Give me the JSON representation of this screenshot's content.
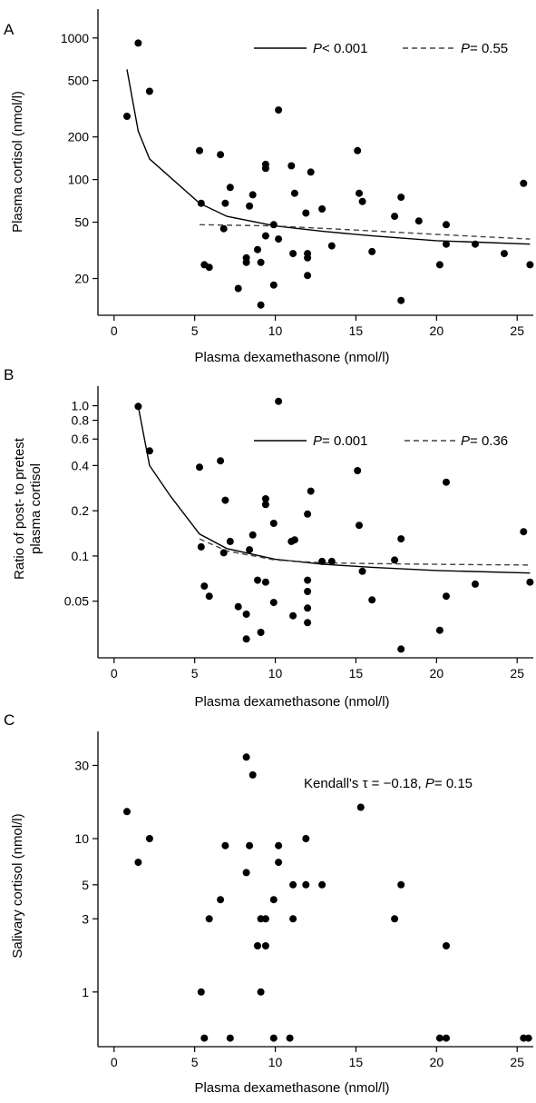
{
  "chart_data": [
    {
      "panel": "A",
      "type": "scatter",
      "xlabel": "Plasma dexamethasone (nmol/l)",
      "ylabel": "Plasma cortisol (nmol/l)",
      "x_scale": "linear",
      "y_scale": "log",
      "xlim": [
        -1,
        26
      ],
      "ylim": [
        11,
        1600
      ],
      "x_ticks": [
        0,
        5,
        10,
        15,
        20,
        25
      ],
      "y_ticks": [
        20,
        50,
        100,
        200,
        500,
        1000
      ],
      "x_tick_labels": [
        "0",
        "5",
        "10",
        "15",
        "20",
        "25"
      ],
      "y_tick_labels": [
        "20",
        "50",
        "100",
        "200",
        "500",
        "1000"
      ],
      "points": [
        [
          0.8,
          280
        ],
        [
          1.5,
          920
        ],
        [
          2.2,
          420
        ],
        [
          5.3,
          160
        ],
        [
          5.4,
          68
        ],
        [
          5.6,
          25
        ],
        [
          5.9,
          24
        ],
        [
          6.6,
          150
        ],
        [
          6.8,
          45
        ],
        [
          6.9,
          68
        ],
        [
          7.2,
          88
        ],
        [
          7.7,
          17
        ],
        [
          8.2,
          26
        ],
        [
          8.2,
          28
        ],
        [
          8.4,
          65
        ],
        [
          8.6,
          78
        ],
        [
          8.9,
          32
        ],
        [
          9.1,
          26
        ],
        [
          9.1,
          13
        ],
        [
          9.4,
          40
        ],
        [
          9.4,
          120
        ],
        [
          9.4,
          128
        ],
        [
          9.9,
          18
        ],
        [
          9.9,
          48
        ],
        [
          10.2,
          310
        ],
        [
          10.2,
          38
        ],
        [
          11.0,
          125
        ],
        [
          11.1,
          30
        ],
        [
          11.2,
          80
        ],
        [
          11.9,
          58
        ],
        [
          12.0,
          21
        ],
        [
          12.0,
          28
        ],
        [
          12.0,
          30
        ],
        [
          12.2,
          113
        ],
        [
          12.9,
          62
        ],
        [
          13.5,
          34
        ],
        [
          15.1,
          160
        ],
        [
          15.2,
          80
        ],
        [
          15.4,
          70
        ],
        [
          16.0,
          31
        ],
        [
          17.4,
          55
        ],
        [
          17.8,
          75
        ],
        [
          17.8,
          14
        ],
        [
          18.9,
          51
        ],
        [
          20.2,
          25
        ],
        [
          20.6,
          48
        ],
        [
          20.6,
          35
        ],
        [
          22.4,
          35
        ],
        [
          24.2,
          30
        ],
        [
          25.4,
          94
        ],
        [
          25.8,
          25
        ]
      ],
      "fits": [
        {
          "style": "solid",
          "points": [
            [
              0.8,
              600
            ],
            [
              1.5,
              220
            ],
            [
              2.2,
              140
            ],
            [
              5.3,
              68
            ],
            [
              7,
              55
            ],
            [
              10,
              47
            ],
            [
              13,
              43
            ],
            [
              16,
              40
            ],
            [
              20,
              37
            ],
            [
              25.8,
              35
            ]
          ]
        },
        {
          "style": "dashed",
          "points": [
            [
              5.3,
              48
            ],
            [
              10,
              47
            ],
            [
              15,
              44
            ],
            [
              20,
              41
            ],
            [
              25.8,
              38
            ]
          ]
        }
      ],
      "legend": {
        "position": "top-right",
        "solid_text": "< 0.001",
        "dashed_text": "= 0.55"
      }
    },
    {
      "panel": "B",
      "type": "scatter",
      "xlabel": "Plasma dexamethasone (nmol/l)",
      "ylabel_line1": "Ratio of post- to pretest",
      "ylabel_line2": "plasma cortisol",
      "x_scale": "linear",
      "y_scale": "log",
      "xlim": [
        -1,
        26
      ],
      "ylim": [
        0.021,
        1.35
      ],
      "x_ticks": [
        0,
        5,
        10,
        15,
        20,
        25
      ],
      "y_ticks": [
        0.05,
        0.1,
        0.2,
        0.4,
        0.6,
        0.8,
        1.0
      ],
      "x_tick_labels": [
        "0",
        "5",
        "10",
        "15",
        "20",
        "25"
      ],
      "y_tick_labels": [
        "0.05",
        "0.1",
        "0.2",
        "0.4",
        "0.6",
        "0.8",
        "1.0"
      ],
      "points": [
        [
          1.5,
          0.99
        ],
        [
          2.2,
          0.5
        ],
        [
          5.3,
          0.39
        ],
        [
          5.4,
          0.115
        ],
        [
          5.6,
          0.063
        ],
        [
          5.9,
          0.054
        ],
        [
          6.6,
          0.43
        ],
        [
          6.8,
          0.105
        ],
        [
          6.9,
          0.235
        ],
        [
          7.2,
          0.125
        ],
        [
          7.7,
          0.046
        ],
        [
          8.2,
          0.041
        ],
        [
          8.2,
          0.028
        ],
        [
          8.4,
          0.11
        ],
        [
          8.6,
          0.138
        ],
        [
          8.9,
          0.069
        ],
        [
          9.1,
          0.031
        ],
        [
          9.4,
          0.067
        ],
        [
          9.4,
          0.24
        ],
        [
          9.4,
          0.22
        ],
        [
          9.9,
          0.165
        ],
        [
          9.9,
          0.049
        ],
        [
          10.2,
          1.07
        ],
        [
          11.0,
          0.125
        ],
        [
          11.1,
          0.04
        ],
        [
          11.2,
          0.128
        ],
        [
          12.0,
          0.069
        ],
        [
          12.0,
          0.058
        ],
        [
          12.0,
          0.045
        ],
        [
          12.0,
          0.036
        ],
        [
          12.0,
          0.19
        ],
        [
          12.2,
          0.27
        ],
        [
          12.9,
          0.092
        ],
        [
          13.5,
          0.092
        ],
        [
          15.1,
          0.37
        ],
        [
          15.2,
          0.16
        ],
        [
          15.4,
          0.079
        ],
        [
          16.0,
          0.051
        ],
        [
          17.4,
          0.094
        ],
        [
          17.8,
          0.13
        ],
        [
          17.8,
          0.024
        ],
        [
          20.2,
          0.032
        ],
        [
          20.6,
          0.31
        ],
        [
          20.6,
          0.054
        ],
        [
          22.4,
          0.065
        ],
        [
          25.4,
          0.145
        ],
        [
          25.8,
          0.067
        ]
      ],
      "fits": [
        {
          "style": "solid",
          "points": [
            [
              1.5,
              0.99
            ],
            [
              2.2,
              0.4
            ],
            [
              3.5,
              0.25
            ],
            [
              5.3,
              0.14
            ],
            [
              7,
              0.112
            ],
            [
              10,
              0.095
            ],
            [
              13,
              0.088
            ],
            [
              16,
              0.084
            ],
            [
              20,
              0.08
            ],
            [
              25.8,
              0.077
            ]
          ]
        },
        {
          "style": "dashed",
          "points": [
            [
              5.3,
              0.13
            ],
            [
              7,
              0.108
            ],
            [
              10,
              0.094
            ],
            [
              13,
              0.09
            ],
            [
              16,
              0.089
            ],
            [
              20,
              0.088
            ],
            [
              25.8,
              0.087
            ]
          ]
        }
      ],
      "legend": {
        "position": "top-right",
        "solid_text": "= 0.001",
        "dashed_text": "= 0.36"
      }
    },
    {
      "panel": "C",
      "type": "scatter",
      "xlabel": "Plasma dexamethasone (nmol/l)",
      "ylabel": "Salivary cortisol (nmol/l)",
      "x_scale": "linear",
      "y_scale": "log",
      "xlim": [
        -1,
        26
      ],
      "ylim": [
        0.44,
        50
      ],
      "x_ticks": [
        0,
        5,
        10,
        15,
        20,
        25
      ],
      "y_ticks": [
        1,
        3,
        5,
        10,
        30
      ],
      "x_tick_labels": [
        "0",
        "5",
        "10",
        "15",
        "20",
        "25"
      ],
      "y_tick_labels": [
        "1",
        "3",
        "5",
        "10",
        "30"
      ],
      "points": [
        [
          0.8,
          15
        ],
        [
          1.5,
          7
        ],
        [
          2.2,
          10
        ],
        [
          5.4,
          1
        ],
        [
          5.6,
          0.5
        ],
        [
          5.9,
          3
        ],
        [
          6.6,
          4
        ],
        [
          6.9,
          9
        ],
        [
          7.2,
          0.5
        ],
        [
          8.2,
          6
        ],
        [
          8.2,
          34
        ],
        [
          8.4,
          9
        ],
        [
          8.6,
          26
        ],
        [
          8.9,
          2
        ],
        [
          9.1,
          1
        ],
        [
          9.1,
          3
        ],
        [
          9.4,
          3
        ],
        [
          9.4,
          2
        ],
        [
          9.9,
          4
        ],
        [
          9.9,
          0.5
        ],
        [
          10.2,
          9
        ],
        [
          10.2,
          7
        ],
        [
          10.9,
          0.5
        ],
        [
          11.1,
          5
        ],
        [
          11.1,
          3
        ],
        [
          11.9,
          5
        ],
        [
          11.9,
          10
        ],
        [
          12.9,
          5
        ],
        [
          15.3,
          16
        ],
        [
          17.4,
          3
        ],
        [
          17.8,
          5
        ],
        [
          20.2,
          0.5
        ],
        [
          20.6,
          0.5
        ],
        [
          20.6,
          2
        ],
        [
          25.4,
          0.5
        ],
        [
          25.7,
          0.5
        ]
      ],
      "annotation": "Kendall's τ = −0.18, P = 0.15"
    }
  ],
  "text": {
    "panel_a": "A",
    "panel_b": "B",
    "panel_c": "C",
    "xlabel": "Plasma dexamethasone (nmol/l)",
    "ylabel_a": "Plasma cortisol (nmol/l)",
    "ylabel_b1": "Ratio of post- to pretest",
    "ylabel_b2": "plasma cortisol",
    "ylabel_c": "Salivary cortisol (nmol/l)",
    "p_symbol": "P",
    "legend_a_solid": "< 0.001",
    "legend_a_dashed": "= 0.55",
    "legend_b_solid": "= 0.001",
    "legend_b_dashed": "= 0.36",
    "kendall_prefix": "Kendall's τ = −0.18,",
    "kendall_p_value": "= 0.15"
  }
}
